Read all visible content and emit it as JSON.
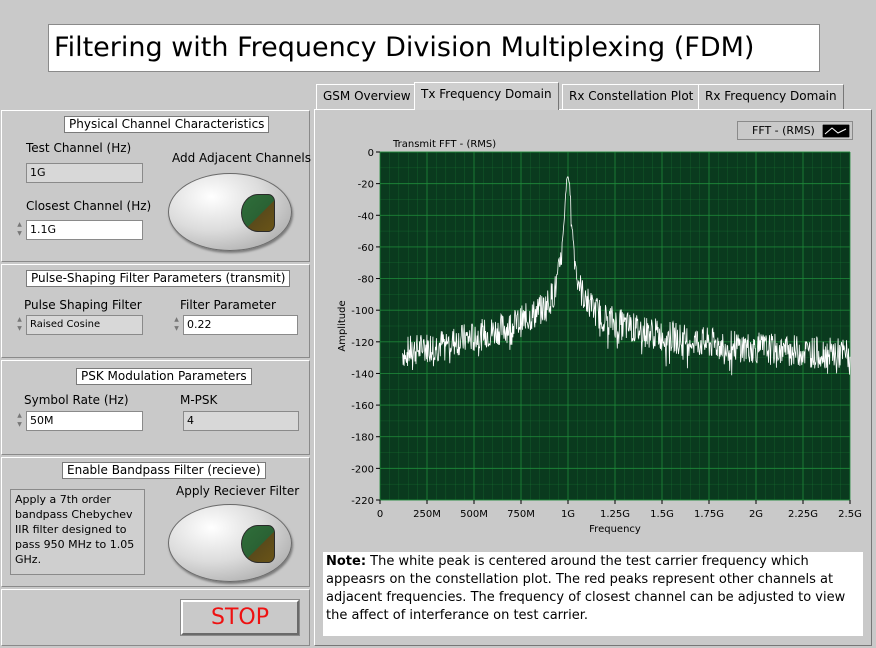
{
  "title": "Filtering with Frequency Division Multiplexing (FDM)",
  "tabs": [
    {
      "label": "GSM Overview",
      "active": false
    },
    {
      "label": "Tx Frequency Domain",
      "active": true
    },
    {
      "label": "Rx Constellation Plot",
      "active": false
    },
    {
      "label": "Rx Frequency Domain",
      "active": false
    }
  ],
  "physical": {
    "header": "Physical Channel Characteristics",
    "test_channel_label": "Test Channel (Hz)",
    "test_channel_value": "1G",
    "closest_channel_label": "Closest Channel (Hz)",
    "closest_channel_value": "1.1G",
    "adjacent_label": "Add Adjacent Channels"
  },
  "pulse": {
    "header": "Pulse-Shaping Filter Parameters (transmit)",
    "filter_label": "Pulse Shaping Filter",
    "filter_value": "Raised Cosine",
    "param_label": "Filter Parameter",
    "param_value": "0.22"
  },
  "psk": {
    "header": "PSK Modulation Parameters",
    "symbol_rate_label": "Symbol Rate (Hz)",
    "symbol_rate_value": "50M",
    "mpsk_label": "M-PSK",
    "mpsk_value": "4"
  },
  "bandpass": {
    "header": "Enable Bandpass Filter (recieve)",
    "description": "Apply a 7th order bandpass Chebychev IIR filter designed to pass 950 MHz to 1.05 GHz.",
    "apply_label": "Apply Reciever Filter"
  },
  "stop_label": "STOP",
  "note": {
    "bold": "Note:",
    "text": " The white peak is centered around the test carrier frequency which appeasrs on the constellation plot.  The red peaks represent other channels at adjacent frequencies.  The frequency of closest channel can be adjusted to view the affect of interferance on test carrier."
  },
  "colors": {
    "plot_bg": "#0a3a1e",
    "grid": "#1f8a3a",
    "trace": "#ffffff",
    "stop_text": "#ee1111"
  },
  "chart_data": {
    "type": "line",
    "title": "Transmit FFT - (RMS)",
    "xlabel": "Frequency",
    "ylabel": "Amplitude",
    "legend": [
      "FFT - (RMS)"
    ],
    "legend_position": "top-right",
    "xlim": [
      0,
      2.5
    ],
    "ylim": [
      -220,
      0
    ],
    "x_ticks": [
      "0",
      "250M",
      "500M",
      "750M",
      "1G",
      "1.25G",
      "1.5G",
      "1.75G",
      "2G",
      "2.25G",
      "2.5G"
    ],
    "y_ticks": [
      "0",
      "-20",
      "-40",
      "-60",
      "-80",
      "-100",
      "-120",
      "-140",
      "-160",
      "-180",
      "-200",
      "-220"
    ],
    "grid": true,
    "series": [
      {
        "name": "FFT - (RMS)",
        "x_units": "GHz",
        "x": [
          0.12,
          0.3,
          0.5,
          0.7,
          0.8,
          0.88,
          0.93,
          0.96,
          0.98,
          0.99,
          1.0,
          1.01,
          1.02,
          1.04,
          1.07,
          1.12,
          1.2,
          1.3,
          1.5,
          1.75,
          2.0,
          2.25,
          2.5
        ],
        "values": [
          -127,
          -122,
          -117,
          -110,
          -104,
          -98,
          -88,
          -72,
          -45,
          -22,
          -15,
          -22,
          -45,
          -72,
          -88,
          -98,
          -105,
          -110,
          -116,
          -121,
          -124,
          -126,
          -128
        ]
      }
    ]
  }
}
